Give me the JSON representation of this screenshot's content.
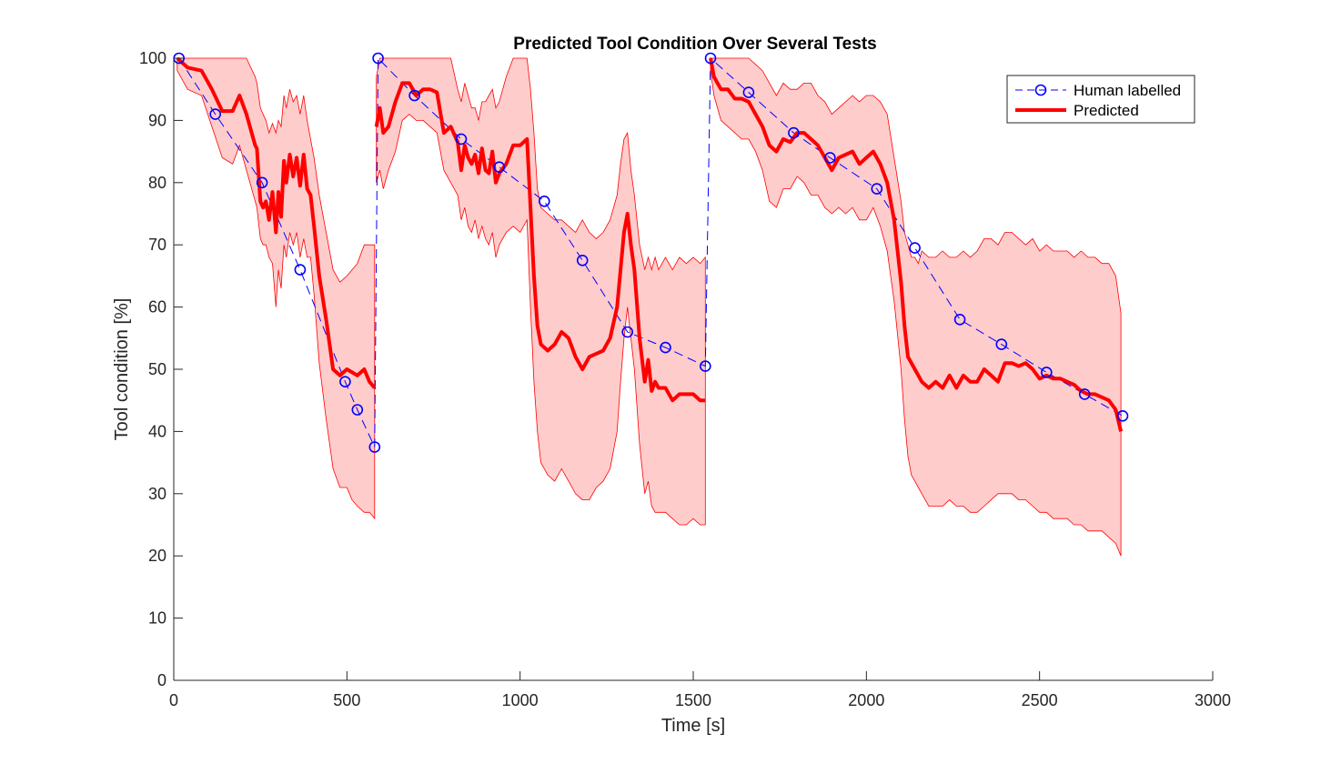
{
  "chart_data": {
    "type": "line",
    "title": "Predicted Tool Condition Over Several Tests",
    "xlabel": "Time [s]",
    "ylabel": "Tool condition [%]",
    "xlim": [
      0,
      3000
    ],
    "ylim": [
      0,
      100
    ],
    "xticks": [
      0,
      500,
      1000,
      1500,
      2000,
      2500,
      3000
    ],
    "yticks": [
      0,
      10,
      20,
      30,
      40,
      50,
      60,
      70,
      80,
      90,
      100
    ],
    "grid": false,
    "legend_position": "top-right",
    "colors": {
      "human": "#0000ff",
      "predicted": "#ff0000",
      "band": "#ffcccc",
      "band_edge": "#ff0000"
    },
    "series": [
      {
        "name": "Human labelled",
        "style": "dashed-line-circle-markers",
        "segments": [
          {
            "x": [
              15,
              120,
              255,
              365,
              495,
              530,
              580
            ],
            "y": [
              100,
              91,
              80,
              66,
              48,
              43.5,
              37.5
            ]
          },
          {
            "x": [
              590,
              695,
              830,
              940,
              1070,
              1180,
              1310,
              1420,
              1535
            ],
            "y": [
              100,
              94,
              87,
              82.5,
              77,
              67.5,
              56,
              53.5,
              50.5
            ]
          },
          {
            "x": [
              1550,
              1660,
              1790,
              1895,
              2030,
              2140,
              2270,
              2390,
              2520,
              2630,
              2740
            ],
            "y": [
              100,
              94.5,
              88,
              84,
              79,
              69.5,
              58,
              54,
              49.5,
              46,
              42.5
            ]
          }
        ]
      },
      {
        "name": "Predicted",
        "style": "solid-thick-line-with-confidence-band",
        "segments": [
          {
            "x": [
              10,
              40,
              80,
              110,
              140,
              170,
              190,
              210,
              235,
              240,
              250,
              258,
              266,
              275,
              285,
              295,
              302,
              310,
              318,
              325,
              335,
              345,
              355,
              365,
              375,
              385,
              395,
              405,
              420,
              440,
              460,
              480,
              500,
              515,
              530,
              550,
              565,
              580
            ],
            "y": [
              100,
              98.5,
              98,
              95,
              91.5,
              91.5,
              94,
              91,
              86,
              85.5,
              77,
              76,
              77,
              74,
              78.5,
              72,
              78.5,
              74.5,
              83.5,
              80,
              84.5,
              81,
              84,
              79.5,
              84.5,
              79,
              78,
              73,
              65,
              58,
              50,
              49,
              50,
              49.5,
              49,
              50,
              48,
              47
            ]
          },
          {
            "x": [
              585,
              595,
              605,
              620,
              640,
              660,
              680,
              700,
              720,
              740,
              760,
              780,
              800,
              820,
              830,
              840,
              850,
              860,
              870,
              880,
              890,
              900,
              910,
              920,
              930,
              940,
              960,
              980,
              1000,
              1020,
              1030,
              1040,
              1050,
              1060,
              1080,
              1100,
              1120,
              1140,
              1160,
              1180,
              1200,
              1220,
              1240,
              1260,
              1280,
              1290,
              1300,
              1310,
              1320,
              1330,
              1345,
              1360,
              1370,
              1380,
              1390,
              1400,
              1420,
              1440,
              1460,
              1480,
              1500,
              1520,
              1535
            ],
            "y": [
              89,
              92,
              88,
              89,
              93,
              96,
              96,
              94,
              95,
              95,
              94.5,
              88,
              89,
              86.5,
              82,
              86,
              84,
              83,
              84.5,
              81.5,
              85.5,
              82,
              81.5,
              85,
              80,
              81.5,
              83,
              86,
              86,
              87,
              76,
              65,
              57,
              54,
              53,
              54,
              56,
              55,
              52,
              50,
              52,
              52.5,
              53,
              55,
              60,
              66,
              72,
              75,
              70,
              66,
              55,
              48,
              51.5,
              46.5,
              48,
              47,
              47,
              45,
              46,
              46,
              46,
              45,
              45
            ]
          },
          {
            "x": [
              1550,
              1560,
              1580,
              1600,
              1620,
              1640,
              1660,
              1680,
              1700,
              1720,
              1740,
              1760,
              1780,
              1800,
              1820,
              1840,
              1860,
              1880,
              1900,
              1920,
              1940,
              1960,
              1980,
              2000,
              2020,
              2040,
              2060,
              2080,
              2100,
              2110,
              2120,
              2130,
              2140,
              2150,
              2160,
              2180,
              2200,
              2220,
              2240,
              2260,
              2280,
              2300,
              2320,
              2340,
              2360,
              2380,
              2400,
              2420,
              2440,
              2460,
              2480,
              2500,
              2520,
              2540,
              2560,
              2580,
              2600,
              2620,
              2640,
              2660,
              2680,
              2700,
              2720,
              2735
            ],
            "y": [
              100,
              97,
              95,
              95,
              93.5,
              93.5,
              93,
              91,
              89,
              86,
              85,
              87,
              86.5,
              88,
              88,
              87,
              86,
              84,
              82,
              84,
              84.5,
              85,
              83,
              84,
              85,
              83,
              80,
              74,
              64,
              57,
              52,
              51,
              50,
              49,
              48,
              47,
              48,
              47,
              49,
              47,
              49,
              48,
              48,
              50,
              49,
              48,
              51,
              51,
              50.5,
              51,
              50,
              48.5,
              49,
              48.5,
              48.5,
              48,
              47.5,
              46.5,
              46,
              46,
              45.5,
              45,
              43.5,
              40
            ]
          }
        ],
        "band": [
          {
            "x": [
              10,
              40,
              80,
              110,
              140,
              170,
              190,
              210,
              235,
              240,
              250,
              258,
              266,
              275,
              285,
              295,
              302,
              310,
              318,
              325,
              335,
              345,
              355,
              365,
              375,
              385,
              395,
              405,
              420,
              440,
              460,
              480,
              500,
              515,
              530,
              550,
              565,
              580
            ],
            "upper": [
              100,
              100,
              100,
              100,
              100,
              100,
              100,
              100,
              97,
              96,
              92,
              91,
              90,
              88,
              89.5,
              88,
              90,
              89,
              94,
              92,
              95,
              93,
              94,
              91,
              94,
              90,
              87,
              84,
              78,
              72,
              66,
              64,
              65,
              66,
              67,
              70,
              70,
              70
            ],
            "lower": [
              98,
              95,
              94,
              89,
              84,
              83,
              86,
              82,
              77,
              76,
              71,
              70,
              70,
              68,
              67,
              60,
              66,
              63,
              70,
              68,
              72,
              70,
              72,
              68,
              71,
              68,
              68,
              62,
              51,
              42,
              34,
              31,
              31,
              29,
              28,
              27,
              27,
              26
            ]
          },
          {
            "x": [
              585,
              595,
              605,
              620,
              640,
              660,
              680,
              700,
              720,
              740,
              760,
              780,
              800,
              820,
              830,
              840,
              850,
              860,
              870,
              880,
              890,
              900,
              910,
              920,
              930,
              940,
              960,
              980,
              1000,
              1020,
              1030,
              1040,
              1050,
              1060,
              1080,
              1100,
              1120,
              1140,
              1160,
              1180,
              1200,
              1220,
              1240,
              1260,
              1280,
              1290,
              1300,
              1310,
              1320,
              1330,
              1345,
              1360,
              1370,
              1380,
              1390,
              1400,
              1420,
              1440,
              1460,
              1480,
              1500,
              1520,
              1535
            ],
            "upper": [
              97,
              100,
              100,
              100,
              100,
              100,
              100,
              100,
              100,
              100,
              100,
              100,
              100,
              95,
              93,
              96,
              94,
              92,
              92,
              90,
              93,
              93,
              94,
              95,
              92,
              93,
              97,
              100,
              100,
              100,
              95,
              88,
              79,
              76,
              75,
              74,
              74,
              73,
              72,
              74,
              72,
              71,
              72,
              74,
              78,
              83,
              87,
              88,
              82,
              78,
              70,
              66,
              68,
              66,
              68,
              66,
              68,
              66,
              68,
              67,
              68,
              67,
              68
            ],
            "lower": [
              80,
              82,
              79,
              82,
              85,
              90,
              91,
              90,
              90,
              89,
              88,
              82,
              80,
              78,
              74,
              76,
              73,
              72,
              74,
              71,
              73,
              71,
              70,
              72,
              68,
              70,
              72,
              73,
              72,
              74,
              60,
              48,
              40,
              35,
              33,
              32,
              34,
              32,
              30,
              29,
              29,
              31,
              32,
              34,
              40,
              48,
              55,
              60,
              55,
              50,
              38,
              30,
              32,
              28,
              27,
              27,
              27,
              26,
              25,
              25,
              26,
              25,
              25
            ]
          },
          {
            "x": [
              1550,
              1560,
              1580,
              1600,
              1620,
              1640,
              1660,
              1680,
              1700,
              1720,
              1740,
              1760,
              1780,
              1800,
              1820,
              1840,
              1860,
              1880,
              1900,
              1920,
              1940,
              1960,
              1980,
              2000,
              2020,
              2040,
              2060,
              2080,
              2100,
              2110,
              2120,
              2130,
              2140,
              2150,
              2160,
              2180,
              2200,
              2220,
              2240,
              2260,
              2280,
              2300,
              2320,
              2340,
              2360,
              2380,
              2400,
              2420,
              2440,
              2460,
              2480,
              2500,
              2520,
              2540,
              2560,
              2580,
              2600,
              2620,
              2640,
              2660,
              2680,
              2700,
              2720,
              2735
            ],
            "upper": [
              100,
              100,
              100,
              100,
              100,
              100,
              100,
              99,
              98,
              96,
              94,
              96,
              95,
              95,
              96,
              96,
              94,
              93,
              91,
              92,
              93,
              94,
              93,
              94,
              94,
              93,
              91,
              84,
              77,
              72,
              70,
              68,
              68,
              67,
              69,
              68,
              68,
              69,
              68,
              68,
              69,
              68,
              69,
              71,
              71,
              70,
              72,
              72,
              71,
              70,
              71,
              69,
              70,
              69,
              69,
              69,
              68,
              69,
              68,
              68,
              67,
              67,
              65,
              59
            ],
            "lower": [
              98,
              94,
              90,
              89,
              88,
              87,
              87,
              85,
              82,
              77,
              76,
              79,
              79,
              81,
              80,
              78,
              78,
              76,
              75,
              76,
              75,
              76,
              74,
              74,
              76,
              73,
              69,
              61,
              50,
              42,
              36,
              33,
              32,
              31,
              30,
              28,
              28,
              28,
              29,
              28,
              28,
              27,
              27,
              28,
              29,
              30,
              30,
              30,
              29,
              29,
              28,
              27,
              27,
              26,
              26,
              26,
              25,
              25,
              24,
              24,
              24,
              23,
              22,
              20
            ]
          }
        ]
      }
    ]
  }
}
